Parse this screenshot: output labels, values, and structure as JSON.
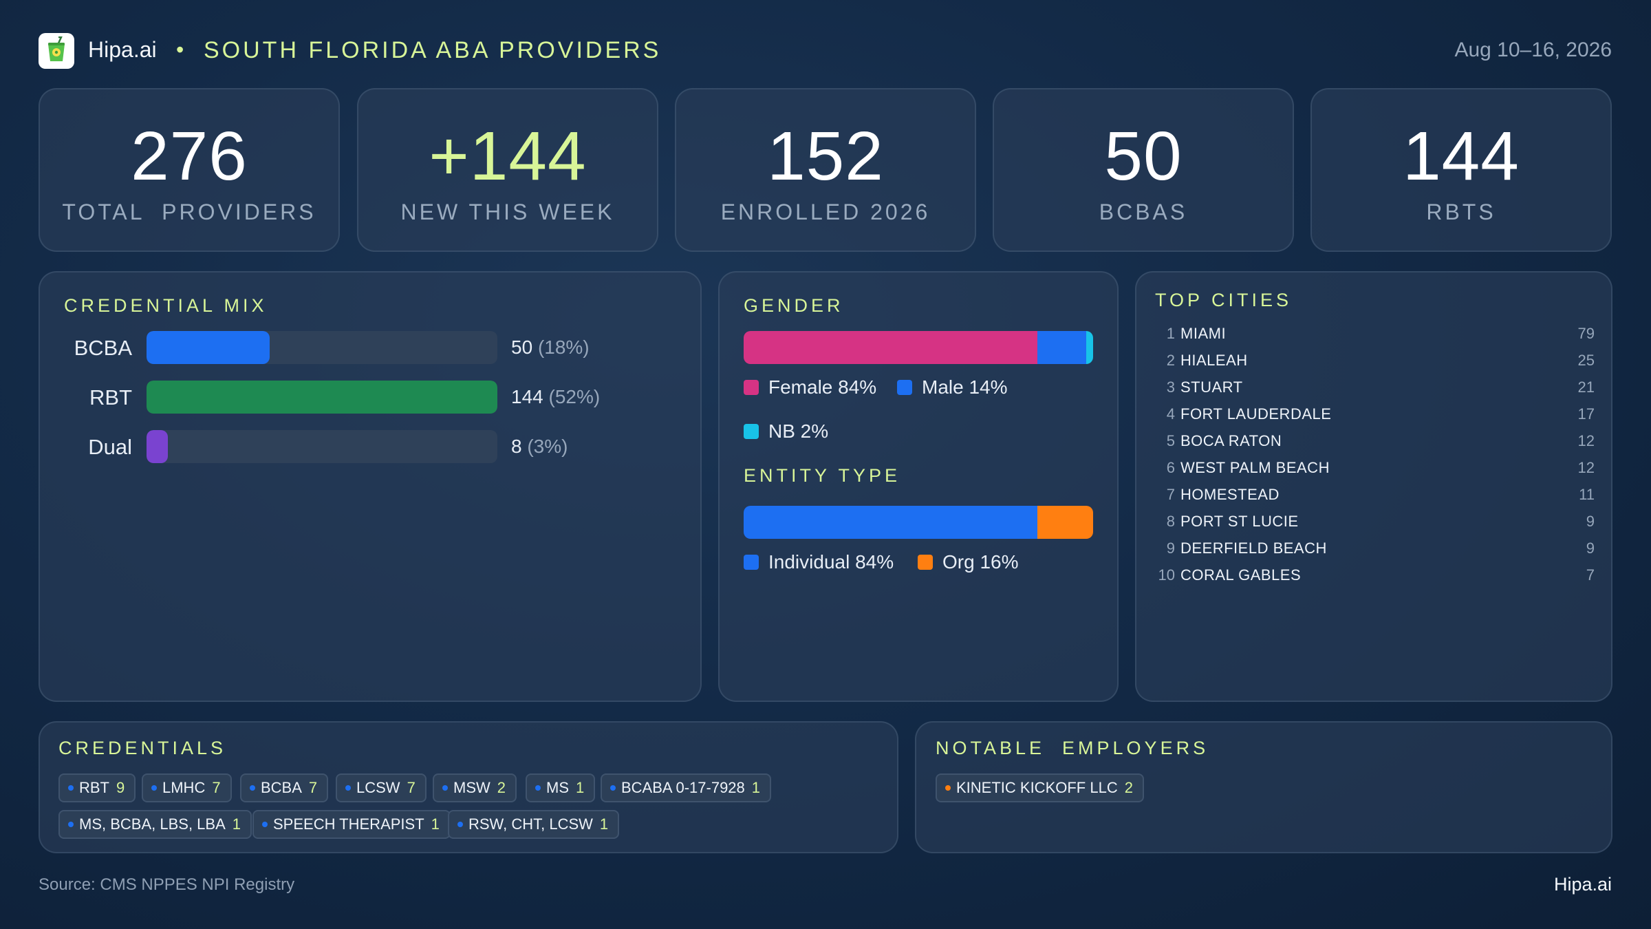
{
  "header": {
    "brand": "Hipa.ai",
    "separator": "•",
    "title": "SOUTH FLORIDA ABA PROVIDERS",
    "date_range": "Aug 10–16, 2026",
    "logo_icon": "cup-with-straw-icon"
  },
  "stats": [
    {
      "value": "276",
      "label": "TOTAL  PROVIDERS"
    },
    {
      "value": "+144",
      "label": "NEW THIS WEEK"
    },
    {
      "value": "152",
      "label": "ENROLLED 2026"
    },
    {
      "value": "50",
      "label": "BCBAS"
    },
    {
      "value": "144",
      "label": "RBTS"
    }
  ],
  "credential_mix": {
    "title": "CREDENTIAL MIX",
    "rows": [
      {
        "label": "BCBA",
        "value": "50",
        "pct": "(18%)",
        "fraction": 0.35,
        "color": "#1d6ff2"
      },
      {
        "label": "RBT",
        "value": "144",
        "pct": "(52%)",
        "fraction": 1.0,
        "color": "#1e8a52"
      },
      {
        "label": "Dual",
        "value": "8",
        "pct": "(3%)",
        "fraction": 0.06,
        "color": "#7a43d0"
      }
    ]
  },
  "gender": {
    "title": "GENDER",
    "segments": [
      {
        "label": "Female 84%",
        "share": 84,
        "color": "#d63384"
      },
      {
        "label": "Male 14%",
        "share": 14,
        "color": "#1d6ff2"
      },
      {
        "label": "NB 2%",
        "share": 2,
        "color": "#18c3e8"
      }
    ]
  },
  "entity_type": {
    "title": "ENTITY TYPE",
    "segments": [
      {
        "label": "Individual 84%",
        "share": 84,
        "color": "#1d6ff2"
      },
      {
        "label": "Org 16%",
        "share": 16,
        "color": "#ff7f11"
      }
    ]
  },
  "top_cities": {
    "title": "TOP CITIES",
    "rows": [
      {
        "rank": "1",
        "name": "MIAMI",
        "count": "79"
      },
      {
        "rank": "2",
        "name": "HIALEAH",
        "count": "25"
      },
      {
        "rank": "3",
        "name": "STUART",
        "count": "21"
      },
      {
        "rank": "4",
        "name": "FORT LAUDERDALE",
        "count": "17"
      },
      {
        "rank": "5",
        "name": "BOCA RATON",
        "count": "12"
      },
      {
        "rank": "6",
        "name": "WEST PALM BEACH",
        "count": "12"
      },
      {
        "rank": "7",
        "name": "HOMESTEAD",
        "count": "11"
      },
      {
        "rank": "8",
        "name": "PORT ST LUCIE",
        "count": "9"
      },
      {
        "rank": "9",
        "name": "DEERFIELD BEACH",
        "count": "9"
      },
      {
        "rank": "10",
        "name": "CORAL GABLES",
        "count": "7"
      }
    ]
  },
  "credentials": {
    "title": "CREDENTIALS",
    "dot_color": "#1d6ff2",
    "chips": [
      {
        "name": "RBT",
        "count": "9"
      },
      {
        "name": "LMHC",
        "count": "7"
      },
      {
        "name": "BCBA",
        "count": "7"
      },
      {
        "name": "LCSW",
        "count": "7"
      },
      {
        "name": "MSW",
        "count": "2"
      },
      {
        "name": "MS",
        "count": "1"
      },
      {
        "name": "BCABA 0-17-7928",
        "count": "1"
      },
      {
        "name": "MS, BCBA, LBS, LBA",
        "count": "1"
      },
      {
        "name": "SPEECH THERAPIST",
        "count": "1"
      },
      {
        "name": "RSW, CHT, LCSW",
        "count": "1"
      }
    ]
  },
  "employers": {
    "title": "NOTABLE  EMPLOYERS",
    "dot_color": "#ff7f11",
    "chips": [
      {
        "name": "KINETIC KICKOFF LLC",
        "count": "2"
      }
    ]
  },
  "footer": {
    "source": "Source: CMS NPPES NPI Registry",
    "brand": "Hipa.ai"
  }
}
